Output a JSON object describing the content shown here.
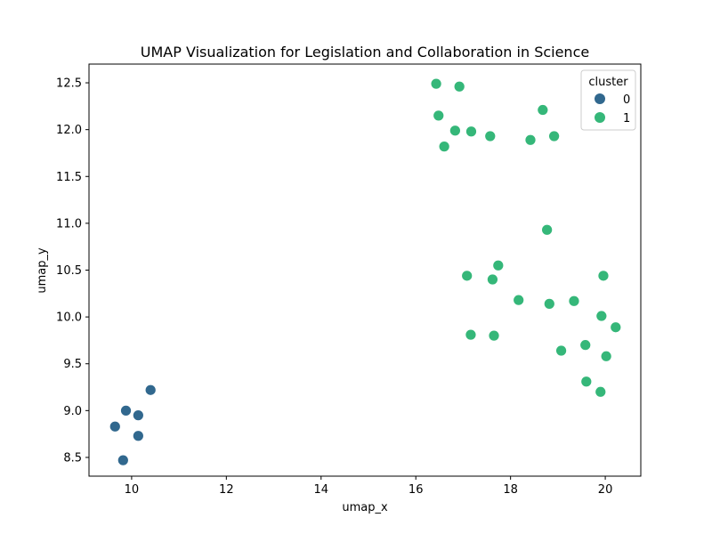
{
  "chart_data": {
    "type": "scatter",
    "title": "UMAP Visualization for Legislation and Collaboration in Science",
    "xlabel": "umap_x",
    "ylabel": "umap_y",
    "xlim": [
      9.1,
      20.75
    ],
    "ylim": [
      8.3,
      12.7
    ],
    "xticks": [
      10,
      12,
      14,
      16,
      18,
      20
    ],
    "yticks": [
      8.5,
      9.0,
      9.5,
      10.0,
      10.5,
      11.0,
      11.5,
      12.0,
      12.5
    ],
    "xtick_labels": [
      "10",
      "12",
      "14",
      "16",
      "18",
      "20"
    ],
    "ytick_labels": [
      "8.5",
      "9.0",
      "9.5",
      "10.0",
      "10.5",
      "11.0",
      "11.5",
      "12.0",
      "12.5"
    ],
    "grid": false,
    "legend": {
      "title": "cluster",
      "placement": "top-right",
      "entries": [
        {
          "label": "0",
          "color": "#31688e"
        },
        {
          "label": "1",
          "color": "#35b779"
        }
      ]
    },
    "series": [
      {
        "name": "0",
        "color": "#31688e",
        "points": [
          {
            "x": 10.4,
            "y": 9.22
          },
          {
            "x": 9.88,
            "y": 9.0
          },
          {
            "x": 10.14,
            "y": 8.95
          },
          {
            "x": 9.65,
            "y": 8.83
          },
          {
            "x": 10.14,
            "y": 8.73
          },
          {
            "x": 9.82,
            "y": 8.47
          }
        ]
      },
      {
        "name": "1",
        "color": "#35b779",
        "points": [
          {
            "x": 16.43,
            "y": 12.49
          },
          {
            "x": 16.92,
            "y": 12.46
          },
          {
            "x": 16.48,
            "y": 12.15
          },
          {
            "x": 18.68,
            "y": 12.21
          },
          {
            "x": 16.83,
            "y": 11.99
          },
          {
            "x": 17.17,
            "y": 11.98
          },
          {
            "x": 17.57,
            "y": 11.93
          },
          {
            "x": 18.42,
            "y": 11.89
          },
          {
            "x": 18.92,
            "y": 11.93
          },
          {
            "x": 16.6,
            "y": 11.82
          },
          {
            "x": 18.77,
            "y": 10.93
          },
          {
            "x": 17.74,
            "y": 10.55
          },
          {
            "x": 17.08,
            "y": 10.44
          },
          {
            "x": 17.62,
            "y": 10.4
          },
          {
            "x": 19.96,
            "y": 10.44
          },
          {
            "x": 18.17,
            "y": 10.18
          },
          {
            "x": 18.82,
            "y": 10.14
          },
          {
            "x": 19.34,
            "y": 10.17
          },
          {
            "x": 19.92,
            "y": 10.01
          },
          {
            "x": 20.22,
            "y": 9.89
          },
          {
            "x": 17.16,
            "y": 9.81
          },
          {
            "x": 17.65,
            "y": 9.8
          },
          {
            "x": 19.58,
            "y": 9.7
          },
          {
            "x": 19.07,
            "y": 9.64
          },
          {
            "x": 20.02,
            "y": 9.58
          },
          {
            "x": 19.6,
            "y": 9.31
          },
          {
            "x": 19.9,
            "y": 9.2
          }
        ]
      }
    ]
  }
}
